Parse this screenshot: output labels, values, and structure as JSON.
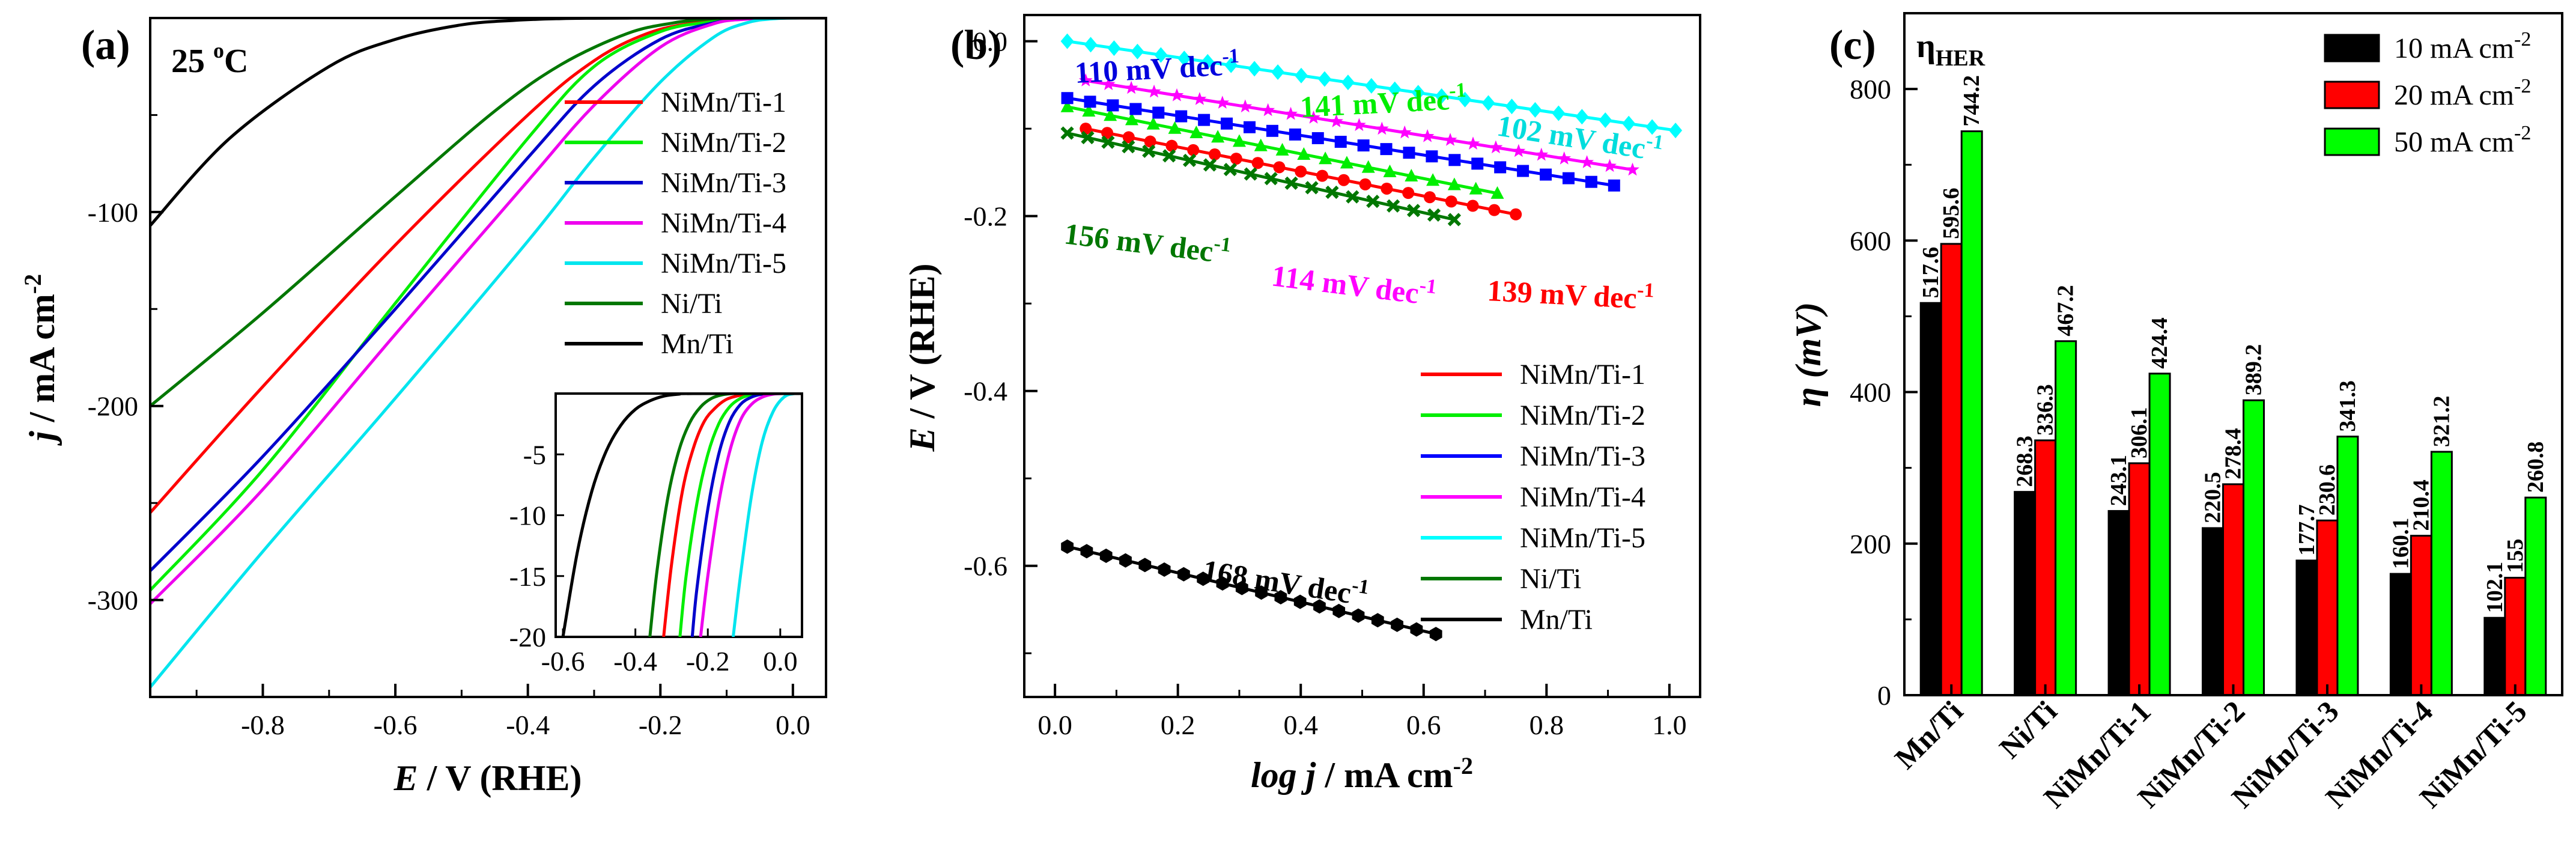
{
  "chart_data": [
    {
      "type": "line",
      "panel_label": "(a)",
      "temperature_note": {
        "base": "25 ",
        "sup": "o",
        "unit": "C"
      },
      "xlabel": {
        "italic": "E",
        "rest": " / V (RHE)"
      },
      "ylabel": {
        "italic": "j",
        "rest": " / mA cm",
        "sup": "-2"
      },
      "xlim": [
        -0.97,
        0.05
      ],
      "ylim": [
        -350,
        0
      ],
      "xticks": [
        -0.8,
        -0.6,
        -0.4,
        -0.2,
        0.0
      ],
      "xtick_labels": [
        "-0.8",
        "-0.6",
        "-0.4",
        "-0.2",
        "0.0"
      ],
      "yticks": [
        -100,
        -200,
        -300
      ],
      "ytick_labels": [
        "-100",
        "-200",
        "-300"
      ],
      "legend_position": "upper-right",
      "series": [
        {
          "name": "NiMn/Ti-1",
          "color": "#ff0000",
          "x": [
            -0.97,
            -0.8,
            -0.6,
            -0.4,
            -0.3,
            -0.22,
            -0.15,
            -0.09,
            -0.05,
            -0.02
          ],
          "y": [
            -255,
            -190,
            -117,
            -50,
            -22,
            -8,
            -2.5,
            -0.6,
            -0.1,
            0
          ]
        },
        {
          "name": "NiMn/Ti-2",
          "color": "#00ee00",
          "x": [
            -0.97,
            -0.8,
            -0.6,
            -0.4,
            -0.3,
            -0.2,
            -0.12,
            -0.07,
            -0.04,
            -0.02
          ],
          "y": [
            -295,
            -233,
            -147,
            -62,
            -25,
            -7,
            -1.8,
            -0.4,
            -0.1,
            0
          ]
        },
        {
          "name": "NiMn/Ti-3",
          "color": "#0000cc",
          "x": [
            -0.97,
            -0.8,
            -0.6,
            -0.4,
            -0.3,
            -0.2,
            -0.12,
            -0.07,
            -0.03,
            -0.01
          ],
          "y": [
            -285,
            -226,
            -150,
            -72,
            -35,
            -11,
            -2.5,
            -0.5,
            -0.1,
            0
          ]
        },
        {
          "name": "NiMn/Ti-4",
          "color": "#ee00ee",
          "x": [
            -0.97,
            -0.8,
            -0.6,
            -0.4,
            -0.3,
            -0.2,
            -0.12,
            -0.07,
            -0.03,
            0.0
          ],
          "y": [
            -302,
            -243,
            -163,
            -84,
            -45,
            -15,
            -3,
            -0.6,
            -0.1,
            0
          ]
        },
        {
          "name": "NiMn/Ti-5",
          "color": "#00e5ee",
          "x": [
            -0.97,
            -0.8,
            -0.6,
            -0.4,
            -0.3,
            -0.2,
            -0.12,
            -0.07,
            -0.03,
            0.01
          ],
          "y": [
            -345,
            -275,
            -196,
            -115,
            -72,
            -33,
            -10,
            -2.5,
            -0.4,
            0
          ]
        },
        {
          "name": "Ni/Ti",
          "color": "#007700",
          "x": [
            -0.97,
            -0.8,
            -0.6,
            -0.45,
            -0.35,
            -0.25,
            -0.18,
            -0.13,
            -0.09,
            -0.06
          ],
          "y": [
            -200,
            -152,
            -92,
            -48,
            -24,
            -8,
            -2.5,
            -0.6,
            -0.1,
            0
          ]
        },
        {
          "name": "Mn/Ti",
          "color": "#000000",
          "x": [
            -0.97,
            -0.85,
            -0.7,
            -0.6,
            -0.5,
            -0.42,
            -0.35,
            -0.3,
            -0.25,
            -0.2
          ],
          "y": [
            -107,
            -62,
            -25,
            -11,
            -3.5,
            -1.2,
            -0.3,
            -0.1,
            -0.02,
            0
          ]
        }
      ],
      "inset": {
        "xlim": [
          -0.62,
          0.06
        ],
        "ylim": [
          -20,
          0
        ],
        "xticks": [
          -0.6,
          -0.4,
          -0.2,
          0.0
        ],
        "xtick_labels": [
          "-0.6",
          "-0.4",
          "-0.2",
          "0.0"
        ],
        "yticks": [
          -5,
          -10,
          -15,
          -20
        ],
        "ytick_labels": [
          "-5",
          "-10",
          "-15",
          "-20"
        ],
        "series": [
          {
            "name": "NiMn/Ti-1",
            "color": "#ff0000",
            "x": [
              -0.322,
              -0.3,
              -0.27,
              -0.24,
              -0.21,
              -0.18,
              -0.15,
              -0.12,
              -0.09,
              -0.06,
              -0.03
            ],
            "y": [
              -20,
              -14,
              -8,
              -4.5,
              -2.3,
              -1.2,
              -0.5,
              -0.2,
              -0.05,
              0,
              0
            ]
          },
          {
            "name": "NiMn/Ti-2",
            "color": "#00ee00",
            "x": [
              -0.277,
              -0.26,
              -0.23,
              -0.2,
              -0.17,
              -0.14,
              -0.11,
              -0.08,
              -0.05,
              -0.02
            ],
            "y": [
              -20,
              -15,
              -9,
              -5,
              -2.5,
              -1.1,
              -0.4,
              -0.1,
              0,
              0
            ]
          },
          {
            "name": "NiMn/Ti-3",
            "color": "#0000cc",
            "x": [
              -0.243,
              -0.23,
              -0.2,
              -0.17,
              -0.14,
              -0.11,
              -0.08,
              -0.05,
              -0.02
            ],
            "y": [
              -20,
              -16,
              -9.5,
              -5,
              -2.3,
              -0.9,
              -0.3,
              -0.05,
              0
            ]
          },
          {
            "name": "NiMn/Ti-4",
            "color": "#ee00ee",
            "x": [
              -0.22,
              -0.2,
              -0.17,
              -0.14,
              -0.11,
              -0.08,
              -0.05,
              -0.02,
              0.01
            ],
            "y": [
              -20,
              -15,
              -9,
              -4.8,
              -2.2,
              -0.9,
              -0.3,
              -0.05,
              0
            ]
          },
          {
            "name": "NiMn/Ti-5",
            "color": "#00e5ee",
            "x": [
              -0.13,
              -0.11,
              -0.08,
              -0.05,
              -0.02,
              0.01,
              0.04
            ],
            "y": [
              -20,
              -15,
              -8.5,
              -4,
              -1.5,
              -0.3,
              0
            ]
          },
          {
            "name": "Ni/Ti",
            "color": "#007700",
            "x": [
              -0.36,
              -0.34,
              -0.31,
              -0.28,
              -0.25,
              -0.22,
              -0.19,
              -0.16,
              -0.13,
              -0.1
            ],
            "y": [
              -20,
              -14.5,
              -8.5,
              -4.7,
              -2.4,
              -1.1,
              -0.4,
              -0.1,
              0,
              0
            ]
          },
          {
            "name": "Mn/Ti",
            "color": "#000000",
            "x": [
              -0.6,
              -0.56,
              -0.52,
              -0.48,
              -0.44,
              -0.4,
              -0.36,
              -0.32,
              -0.28,
              -0.24
            ],
            "y": [
              -20,
              -13,
              -8,
              -4.7,
              -2.6,
              -1.3,
              -0.6,
              -0.2,
              -0.05,
              0
            ]
          }
        ]
      }
    },
    {
      "type": "scatter",
      "panel_label": "(b)",
      "xlabel": {
        "italic": "log j",
        "rest": " / mA cm",
        "sup": "-2"
      },
      "ylabel": {
        "italic": "E",
        "rest": " / V (RHE)"
      },
      "xlim": [
        -0.05,
        1.05
      ],
      "ylim": [
        -0.75,
        0.03
      ],
      "xticks": [
        0.0,
        0.2,
        0.4,
        0.6,
        0.8,
        1.0
      ],
      "xtick_labels": [
        "0.0",
        "0.2",
        "0.4",
        "0.6",
        "0.8",
        "1.0"
      ],
      "yticks": [
        0.0,
        -0.2,
        -0.4,
        -0.6
      ],
      "ytick_labels": [
        "0.0",
        "-0.2",
        "-0.4",
        "-0.6"
      ],
      "legend_position": "lower-right",
      "series": [
        {
          "name": "NiMn/Ti-1",
          "color": "#ff0000",
          "marker": "circle",
          "x_start": 0.05,
          "x_end": 0.75,
          "y_start": -0.1,
          "y_end": -0.198,
          "count": 21,
          "tafel_text": "139 mV dec",
          "tafel_sup": "-1"
        },
        {
          "name": "NiMn/Ti-2",
          "color": "#00ee00",
          "marker": "triangle",
          "x_start": 0.02,
          "x_end": 0.72,
          "y_start": -0.075,
          "y_end": -0.174,
          "count": 21,
          "tafel_text": "141 mV dec",
          "tafel_sup": "-1"
        },
        {
          "name": "NiMn/Ti-3",
          "color": "#0000ff",
          "marker": "square",
          "x_start": 0.02,
          "x_end": 0.91,
          "y_start": -0.065,
          "y_end": -0.165,
          "count": 25,
          "tafel_text": "110 mV dec",
          "tafel_sup": "-1"
        },
        {
          "name": "NiMn/Ti-4",
          "color": "#ff00ff",
          "marker": "star",
          "x_start": 0.05,
          "x_end": 0.94,
          "y_start": -0.045,
          "y_end": -0.147,
          "count": 25,
          "tafel_text": "114 mV dec",
          "tafel_sup": "-1"
        },
        {
          "name": "NiMn/Ti-5",
          "color": "#00ffff",
          "marker": "diamond",
          "x_start": 0.02,
          "x_end": 1.01,
          "y_start": 0.0,
          "y_end": -0.102,
          "count": 27,
          "tafel_text": "102 mV dec",
          "tafel_sup": "-1"
        },
        {
          "name": "Ni/Ti",
          "color": "#007700",
          "marker": "x",
          "x_start": 0.02,
          "x_end": 0.65,
          "y_start": -0.105,
          "y_end": -0.204,
          "count": 20,
          "tafel_text": "156 mV dec",
          "tafel_sup": "-1"
        },
        {
          "name": "Mn/Ti",
          "color": "#000000",
          "marker": "hexagon",
          "x_start": 0.02,
          "x_end": 0.62,
          "y_start": -0.578,
          "y_end": -0.678,
          "count": 20,
          "tafel_text": "168 mV dec",
          "tafel_sup": "-1"
        }
      ]
    },
    {
      "type": "bar",
      "panel_label": "(c)",
      "title": {
        "base": "η",
        "sub": "HER"
      },
      "ylabel": {
        "italic": "η (mV)"
      },
      "categories": [
        "Mn/Ti",
        "Ni/Ti",
        "NiMn/Ti-1",
        "NiMn/Ti-2",
        "NiMn/Ti-3",
        "NiMn/Ti-4",
        "NiMn/Ti-5"
      ],
      "ylim": [
        0,
        900
      ],
      "yticks": [
        0,
        200,
        400,
        600,
        800
      ],
      "ytick_labels": [
        "0",
        "200",
        "400",
        "600",
        "800"
      ],
      "legend_position": "upper-right",
      "series": [
        {
          "name": "10 mA cm",
          "name_sup": "-2",
          "color": "#000000",
          "values": [
            517.6,
            268.3,
            243.1,
            220.5,
            177.7,
            160.1,
            102.1
          ],
          "labels": [
            "517.6",
            "268.3",
            "243.1",
            "220.5",
            "177.7",
            "160.1",
            "102.1"
          ]
        },
        {
          "name": "20 mA cm",
          "name_sup": "-2",
          "color": "#ff0000",
          "values": [
            595.6,
            336.3,
            306.1,
            278.4,
            230.6,
            210.4,
            155
          ],
          "labels": [
            "595.6",
            "336.3",
            "306.1",
            "278.4",
            "230.6",
            "210.4",
            "155"
          ]
        },
        {
          "name": "50 mA cm",
          "name_sup": "-2",
          "color": "#00ff00",
          "values": [
            744.2,
            467.2,
            424.4,
            389.2,
            341.3,
            321.2,
            260.8
          ],
          "labels": [
            "744.2",
            "467.2",
            "424.4",
            "389.2",
            "341.3",
            "321.2",
            "260.8"
          ]
        }
      ]
    }
  ]
}
